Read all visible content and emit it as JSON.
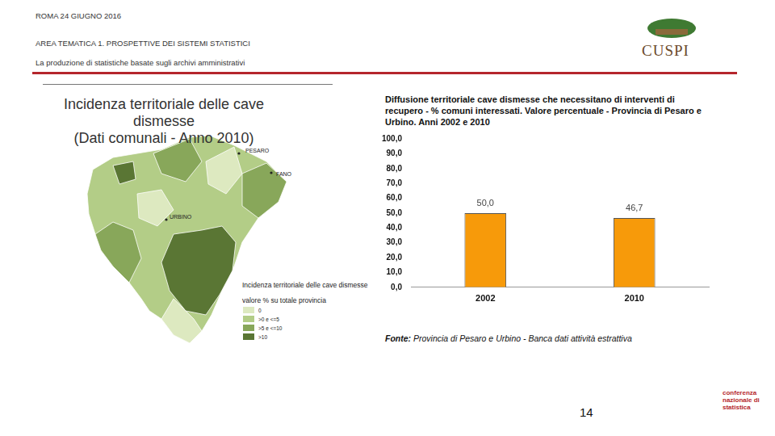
{
  "header": {
    "date": "ROMA 24 GIUGNO 2016",
    "area": "AREA TEMATICA 1. PROSPETTIVE DEI SISTEMI STATISTICI",
    "subtitle": "La produzione di statistiche basate sugli archivi amministrativi",
    "logo": "CUSPI",
    "page": "14",
    "footer_logo": "conferenza nazionale di statistica"
  },
  "map": {
    "title": "Incidenza territoriale delle cave dismesse",
    "subtitle": "(Dati comunali - Anno 2010)",
    "places": [
      "PESARO",
      "FANO",
      "URBINO"
    ],
    "legend": {
      "title": "Incidenza territoriale delle cave dismesse",
      "subtitle": "valore % su totale provincia",
      "classes": [
        {
          "label": "0",
          "color": "#dde9c0"
        },
        {
          "label": ">0 e <=5",
          "color": "#b3cd87"
        },
        {
          "label": ">5 e <=10",
          "color": "#88a75a"
        },
        {
          "label": ">10",
          "color": "#5a7634"
        }
      ]
    }
  },
  "chart_data": {
    "type": "bar",
    "title": "Diffusione territoriale cave dismesse che necessitano di interventi di recupero - % comuni interessati. Valore percentuale - Provincia di Pesaro e Urbino. Anni 2002 e 2010",
    "categories": [
      "2002",
      "2010"
    ],
    "values": [
      50.0,
      46.7
    ],
    "value_labels": [
      "50,0",
      "46,7"
    ],
    "data_labels": true,
    "color": "#f79a0a",
    "ylim": [
      0,
      100
    ],
    "yticks": [
      {
        "value": 0,
        "label": "0,0"
      },
      {
        "value": 10,
        "label": "10,0"
      },
      {
        "value": 20,
        "label": "20,0"
      },
      {
        "value": 30,
        "label": "30,0"
      },
      {
        "value": 40,
        "label": "40,0"
      },
      {
        "value": 50,
        "label": "50,0"
      },
      {
        "value": 60,
        "label": "60,0"
      },
      {
        "value": 70,
        "label": "70,0"
      },
      {
        "value": 80,
        "label": "80,0"
      },
      {
        "value": 90,
        "label": "90,0"
      },
      {
        "value": 100,
        "label": "100,0"
      }
    ],
    "grid": false,
    "source_label": "Fonte:",
    "source": "Provincia di Pesaro e Urbino - Banca dati attività estrattiva"
  }
}
